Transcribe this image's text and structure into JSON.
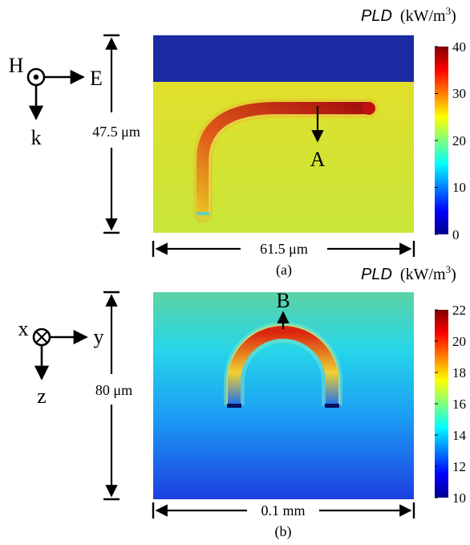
{
  "figure_a": {
    "cbar_title_symbol": "PLD",
    "cbar_title_unit": "(kW/m",
    "cbar_title_exp": "3",
    "cbar_title_close": ")",
    "cbar_ticks": [
      "40",
      "30",
      "20",
      "10",
      "0"
    ],
    "axis_H": "H",
    "axis_E": "E",
    "axis_k": "k",
    "height_label": "47.5 μm",
    "width_label": "61.5 μm",
    "point_label": "A",
    "caption": "(a)"
  },
  "figure_b": {
    "cbar_title_symbol": "PLD",
    "cbar_title_unit": "(kW/m",
    "cbar_title_exp": "3",
    "cbar_title_close": ")",
    "cbar_ticks": [
      "22",
      "20",
      "18",
      "16",
      "14",
      "12",
      "10"
    ],
    "axis_x": "x",
    "axis_y": "y",
    "axis_z": "z",
    "height_label": "80 μm",
    "width_label": "0.1 mm",
    "point_label": "B",
    "caption": "(b)"
  },
  "colors": {
    "deep_blue": "#1a2aa0",
    "field_a": "#cfe12a",
    "field_b_top": "#5ed6a8",
    "field_b_bottom": "#1f42e0",
    "hot": "#d42010",
    "dark_red": "#7a0000"
  }
}
